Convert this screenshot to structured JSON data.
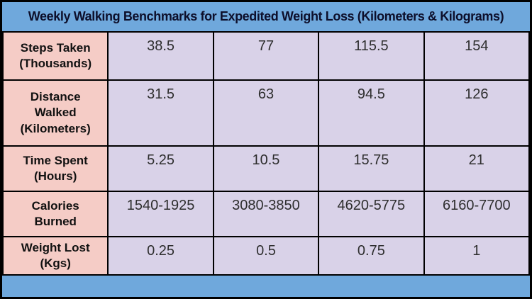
{
  "title": "Weekly Walking Benchmarks for Expedited Weight Loss (Kilometers & Kilograms)",
  "colors": {
    "background_blue": "#6fa8dc",
    "row_header_pink": "#f5ccc6",
    "cell_lavender": "#d9d2e8",
    "border_black": "#000000",
    "title_text": "#0d0f2b",
    "value_text": "#2e2e2e"
  },
  "table": {
    "rows": [
      {
        "label": "Steps Taken (Thousands)",
        "values": [
          "38.5",
          "77",
          "115.5",
          "154"
        ]
      },
      {
        "label": "Distance Walked (Kilometers)",
        "values": [
          "31.5",
          "63",
          "94.5",
          "126"
        ]
      },
      {
        "label": "Time Spent (Hours)",
        "values": [
          "5.25",
          "10.5",
          "15.75",
          "21"
        ]
      },
      {
        "label": "Calories Burned",
        "values": [
          "1540-1925",
          "3080-3850",
          "4620-5775",
          "6160-7700"
        ]
      },
      {
        "label": "Weight Lost (Kgs)",
        "values": [
          "0.25",
          "0.5",
          "0.75",
          "1"
        ]
      }
    ]
  },
  "chart_data": {
    "type": "table",
    "title": "Weekly Walking Benchmarks for Expedited Weight Loss (Kilometers & Kilograms)",
    "row_headers": [
      "Steps Taken (Thousands)",
      "Distance Walked (Kilometers)",
      "Time Spent (Hours)",
      "Calories Burned",
      "Weight Lost (Kgs)"
    ],
    "rows": [
      [
        "38.5",
        "77",
        "115.5",
        "154"
      ],
      [
        "31.5",
        "63",
        "94.5",
        "126"
      ],
      [
        "5.25",
        "10.5",
        "15.75",
        "21"
      ],
      [
        "1540-1925",
        "3080-3850",
        "4620-5775",
        "6160-7700"
      ],
      [
        "0.25",
        "0.5",
        "0.75",
        "1"
      ]
    ]
  }
}
